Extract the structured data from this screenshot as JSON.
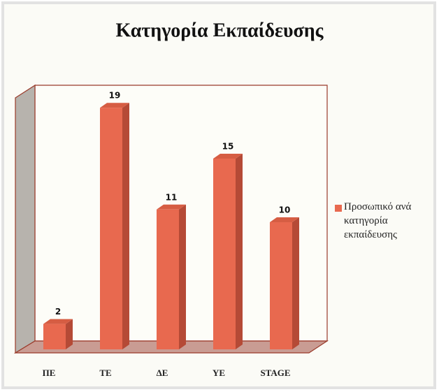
{
  "chart_data": {
    "type": "bar3d",
    "title": "Κατηγορία Εκπαίδευσης",
    "categories": [
      "ΠΕ",
      "ΤΕ",
      "ΔΕ",
      "ΥΕ",
      "STAGE"
    ],
    "series": [
      {
        "name": "Προσωπικό ανά κατηγορία εκπαίδευσης",
        "color": "#e8694f",
        "values": [
          2,
          19,
          11,
          15,
          10
        ]
      }
    ],
    "ylim": [
      0,
      20
    ],
    "legend": "right"
  }
}
